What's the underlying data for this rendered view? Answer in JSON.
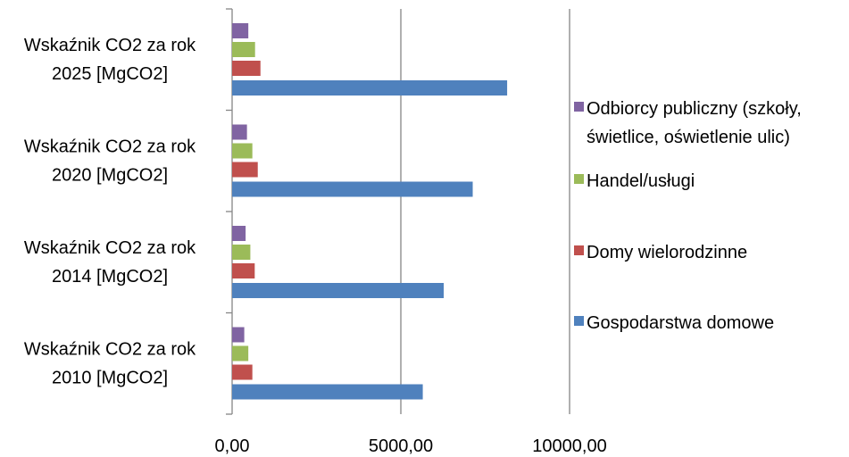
{
  "chart_data": {
    "type": "bar",
    "orientation": "horizontal",
    "categories": [
      [
        "Wskaźnik CO2 za rok",
        "2025 [MgCO2]"
      ],
      [
        "Wskaźnik CO2 za rok",
        "2020 [MgCO2]"
      ],
      [
        "Wskaźnik CO2 za rok",
        "2014 [MgCO2]"
      ],
      [
        "Wskaźnik CO2 za rok",
        "2010 [MgCO2]"
      ]
    ],
    "series": [
      {
        "name": [
          "Odbiorcy publiczny (szkoły,",
          "świetlice, oświetlenie ulic)"
        ],
        "color": "#8064A2",
        "values": [
          480,
          440,
          400,
          360
        ]
      },
      {
        "name": [
          "Handel/usługi"
        ],
        "color": "#9BBB59",
        "values": [
          680,
          600,
          540,
          480
        ]
      },
      {
        "name": [
          "Domy wielorodzinne"
        ],
        "color": "#C0504D",
        "values": [
          840,
          760,
          670,
          600
        ]
      },
      {
        "name": [
          "Gospodarstwa domowe"
        ],
        "color": "#4F81BD",
        "values": [
          8150,
          7130,
          6270,
          5650
        ]
      }
    ],
    "xticks": [
      "0,00",
      "5000,00",
      "10000,00"
    ],
    "xlim": [
      0,
      10000
    ],
    "grid": true,
    "legend_position": "right"
  }
}
